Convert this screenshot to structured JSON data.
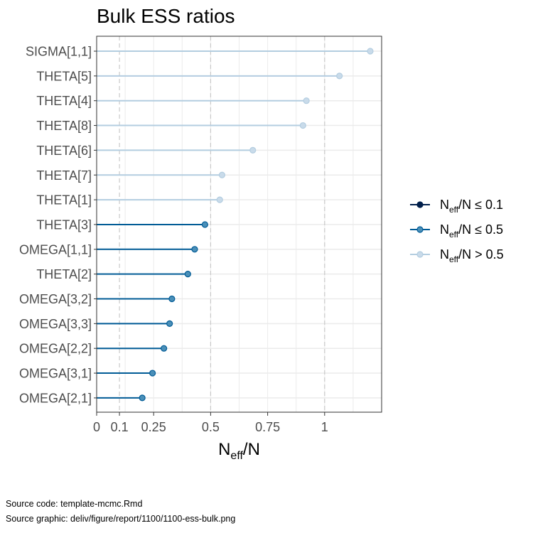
{
  "chart_data": {
    "type": "lollipop",
    "title": "Bulk ESS ratios",
    "xlabel": {
      "base": "N",
      "sub": "eff",
      "tail": "/N"
    },
    "xlim": [
      0,
      1.25
    ],
    "xticks": [
      0,
      0.1,
      0.25,
      0.5,
      0.75,
      1
    ],
    "xtick_labels": [
      "0",
      "0.1",
      "0.25",
      "0.5",
      "0.75",
      "1"
    ],
    "reference_lines": [
      0.1,
      0.5,
      1
    ],
    "grid": true,
    "legend_position": "right",
    "legend": [
      {
        "key": "low",
        "base": "N",
        "sub": "eff",
        "tail": "/N ≤ 0.1"
      },
      {
        "key": "mid",
        "base": "N",
        "sub": "eff",
        "tail": "/N ≤ 0.5"
      },
      {
        "key": "high",
        "base": "N",
        "sub": "eff",
        "tail": "/N > 0.5"
      }
    ],
    "colors": {
      "low": {
        "line": "#011f4b",
        "fill": "#011f4b",
        "stroke": "#011f4b"
      },
      "mid": {
        "line": "#005b96",
        "fill": "#4a8fb8",
        "stroke": "#005b96"
      },
      "high": {
        "line": "#b3cde0",
        "fill": "#c9dbea",
        "stroke": "#b3cde0"
      }
    },
    "categories": [
      "SIGMA[1,1]",
      "THETA[5]",
      "THETA[4]",
      "THETA[8]",
      "THETA[6]",
      "THETA[7]",
      "THETA[1]",
      "THETA[3]",
      "OMEGA[1,1]",
      "THETA[2]",
      "OMEGA[3,2]",
      "OMEGA[3,3]",
      "OMEGA[2,2]",
      "OMEGA[3,1]",
      "OMEGA[2,1]"
    ],
    "values": [
      1.2,
      1.065,
      0.92,
      0.905,
      0.685,
      0.55,
      0.54,
      0.475,
      0.43,
      0.4,
      0.33,
      0.32,
      0.295,
      0.245,
      0.2
    ]
  },
  "footer": {
    "source_code": "Source code: template-mcmc.Rmd",
    "source_graphic": "Source graphic: deliv/figure/report/1100/1100-ess-bulk.png"
  }
}
